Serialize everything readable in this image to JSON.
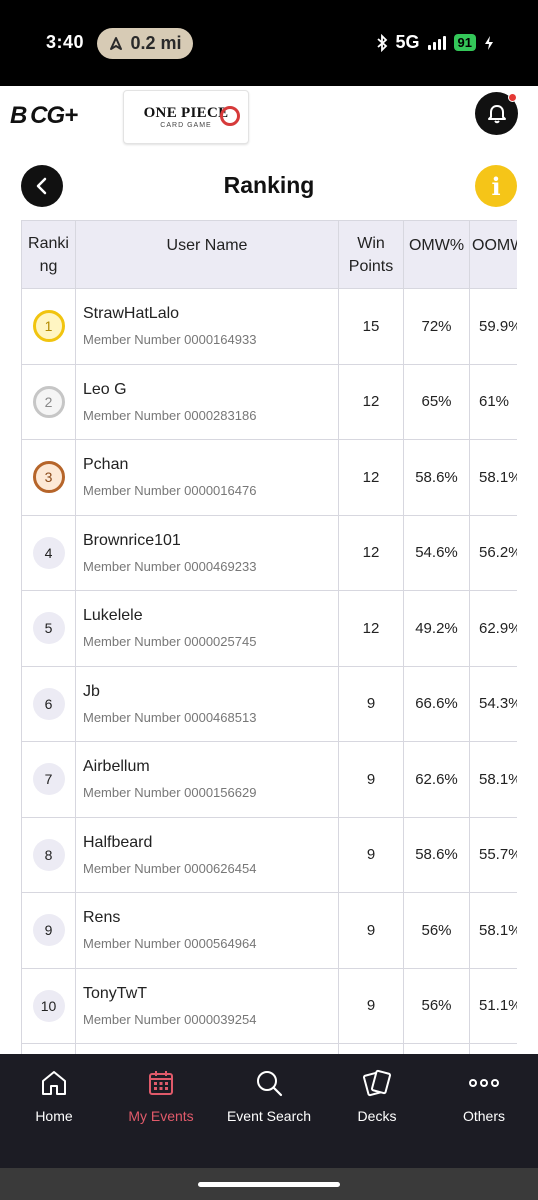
{
  "status_bar": {
    "time": "3:40",
    "location_pill": "0.2 mi",
    "network": "5G",
    "battery": "91"
  },
  "header": {
    "brand_logo": "B CG+",
    "game_logo_title": "ONE PIECE",
    "game_logo_subtitle": "CARD GAME"
  },
  "page": {
    "title": "Ranking"
  },
  "table": {
    "headers": {
      "rank": "Ranki ng",
      "user_name": "User Name",
      "win_points": "Win Points",
      "omw": "OMW%",
      "oomw": "OOMW"
    },
    "rows": [
      {
        "rank": "1",
        "name": "StrawHatLalo",
        "member": "Member Number 0000164933",
        "win_points": "15",
        "omw": "72%",
        "oomw": "59.9%"
      },
      {
        "rank": "2",
        "name": "Leo G",
        "member": "Member Number 0000283186",
        "win_points": "12",
        "omw": "65%",
        "oomw": "61%"
      },
      {
        "rank": "3",
        "name": "Pchan",
        "member": "Member Number 0000016476",
        "win_points": "12",
        "omw": "58.6%",
        "oomw": "58.1%"
      },
      {
        "rank": "4",
        "name": "Brownrice101",
        "member": "Member Number 0000469233",
        "win_points": "12",
        "omw": "54.6%",
        "oomw": "56.2%"
      },
      {
        "rank": "5",
        "name": "Lukelele",
        "member": "Member Number 0000025745",
        "win_points": "12",
        "omw": "49.2%",
        "oomw": "62.9%"
      },
      {
        "rank": "6",
        "name": "Jb",
        "member": "Member Number 0000468513",
        "win_points": "9",
        "omw": "66.6%",
        "oomw": "54.3%"
      },
      {
        "rank": "7",
        "name": "Airbellum",
        "member": "Member Number 0000156629",
        "win_points": "9",
        "omw": "62.6%",
        "oomw": "58.1%"
      },
      {
        "rank": "8",
        "name": "Halfbeard",
        "member": "Member Number 0000626454",
        "win_points": "9",
        "omw": "58.6%",
        "oomw": "55.7%"
      },
      {
        "rank": "9",
        "name": "Rens",
        "member": "Member Number 0000564964",
        "win_points": "9",
        "omw": "56%",
        "oomw": "58.1%"
      },
      {
        "rank": "10",
        "name": "TonyTwT",
        "member": "Member Number 0000039254",
        "win_points": "9",
        "omw": "56%",
        "oomw": "51.1%"
      }
    ]
  },
  "bottom_nav": {
    "items": [
      {
        "label": "Home",
        "icon": "home-icon",
        "active": false
      },
      {
        "label": "My Events",
        "icon": "calendar-icon",
        "active": true
      },
      {
        "label": "Event Search",
        "icon": "search-icon",
        "active": false
      },
      {
        "label": "Decks",
        "icon": "cards-icon",
        "active": false
      },
      {
        "label": "Others",
        "icon": "more-icon",
        "active": false
      }
    ]
  },
  "colors": {
    "accent_active": "#e05a6a",
    "info_yellow": "#f5c518",
    "gold": "#f1c40f",
    "silver": "#c6c6c6",
    "bronze": "#b6652a"
  }
}
